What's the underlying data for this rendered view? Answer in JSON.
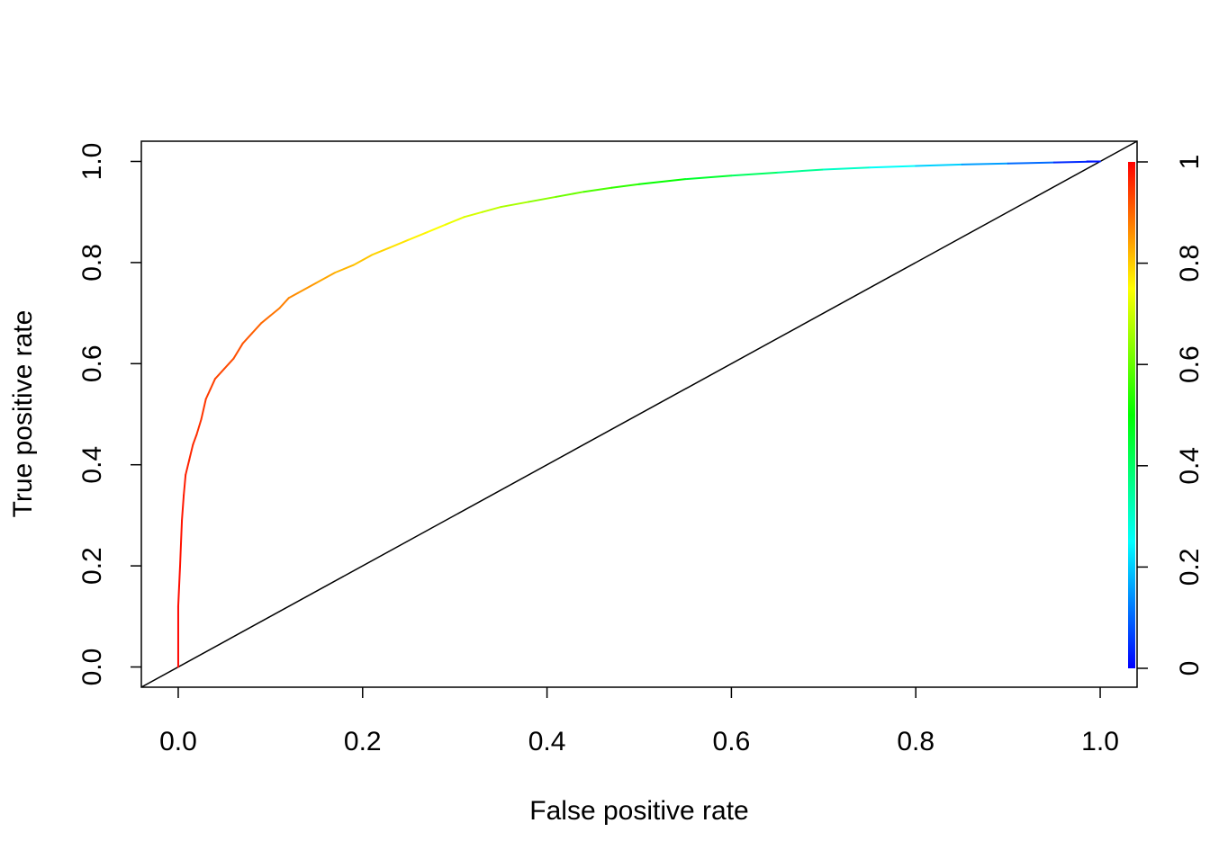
{
  "chart_data": {
    "type": "line",
    "title": "",
    "xlabel": "False positive rate",
    "ylabel": "True positive rate",
    "xlim": [
      -0.04,
      1.04
    ],
    "ylim": [
      -0.04,
      1.04
    ],
    "x_ticks": [
      "0.0",
      "0.2",
      "0.4",
      "0.6",
      "0.8",
      "1.0"
    ],
    "y_ticks": [
      "0.0",
      "0.2",
      "0.4",
      "0.6",
      "0.8",
      "1.0"
    ],
    "grid": false,
    "series": [
      {
        "name": "",
        "colored_by": "cutoff",
        "x": [
          0.0,
          0.0,
          0.002,
          0.004,
          0.006,
          0.008,
          0.012,
          0.016,
          0.02,
          0.025,
          0.03,
          0.035,
          0.04,
          0.05,
          0.06,
          0.07,
          0.08,
          0.09,
          0.1,
          0.11,
          0.12,
          0.13,
          0.15,
          0.17,
          0.19,
          0.21,
          0.23,
          0.25,
          0.27,
          0.29,
          0.31,
          0.33,
          0.35,
          0.38,
          0.41,
          0.44,
          0.47,
          0.5,
          0.55,
          0.6,
          0.65,
          0.7,
          0.75,
          0.8,
          0.85,
          0.9,
          0.95,
          1.0
        ],
        "y": [
          0.0,
          0.12,
          0.2,
          0.29,
          0.34,
          0.38,
          0.41,
          0.44,
          0.46,
          0.49,
          0.53,
          0.55,
          0.57,
          0.59,
          0.61,
          0.64,
          0.66,
          0.68,
          0.695,
          0.71,
          0.73,
          0.74,
          0.76,
          0.78,
          0.795,
          0.815,
          0.83,
          0.845,
          0.86,
          0.875,
          0.89,
          0.9,
          0.91,
          0.92,
          0.93,
          0.94,
          0.948,
          0.955,
          0.965,
          0.972,
          0.978,
          0.984,
          0.988,
          0.991,
          0.994,
          0.996,
          0.998,
          1.0
        ],
        "cutoff": [
          1.0,
          0.99,
          0.985,
          0.98,
          0.975,
          0.97,
          0.965,
          0.96,
          0.955,
          0.95,
          0.945,
          0.94,
          0.935,
          0.93,
          0.925,
          0.92,
          0.91,
          0.9,
          0.89,
          0.88,
          0.87,
          0.86,
          0.845,
          0.83,
          0.815,
          0.8,
          0.785,
          0.77,
          0.755,
          0.74,
          0.72,
          0.7,
          0.68,
          0.65,
          0.62,
          0.59,
          0.56,
          0.53,
          0.48,
          0.43,
          0.38,
          0.33,
          0.28,
          0.23,
          0.18,
          0.13,
          0.08,
          0.0
        ]
      }
    ],
    "reference_line": {
      "x": [
        0,
        1
      ],
      "y": [
        0,
        1
      ],
      "color": "#000000"
    },
    "colorbar": {
      "min": 0,
      "max": 1,
      "ticks": [
        "0",
        "0.2",
        "0.4",
        "0.6",
        "0.8",
        "1"
      ],
      "colors": [
        "#0000ff",
        "#00ffff",
        "#00ff00",
        "#ffff00",
        "#ff0000"
      ]
    }
  }
}
